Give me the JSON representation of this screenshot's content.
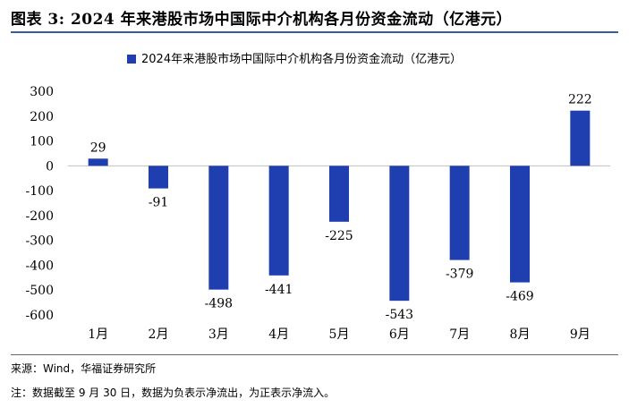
{
  "figure": {
    "title": "图表 3:  2024 年来港股市场中国际中介机构各月份资金流动（亿港元）",
    "source": "来源：Wind，华福证券研究所",
    "note": "注：数据截至 9 月 30 日，数据为负表示净流出，为正表示净流入。"
  },
  "chart_data": {
    "type": "bar",
    "title": "",
    "xlabel": "",
    "ylabel": "",
    "categories": [
      "1月",
      "2月",
      "3月",
      "4月",
      "5月",
      "6月",
      "7月",
      "8月",
      "9月"
    ],
    "series": [
      {
        "name": "2024年来港股市场中国际中介机构各月份资金流动（亿港元）",
        "values": [
          29,
          -91,
          -498,
          -441,
          -225,
          -543,
          -379,
          -469,
          222
        ],
        "color": "#1f3fb0"
      }
    ],
    "ylim": [
      -600,
      300
    ],
    "yticks": [
      300,
      200,
      100,
      0,
      -100,
      -200,
      -300,
      -400,
      -500,
      -600
    ],
    "grid": false,
    "legend": "top-center"
  }
}
